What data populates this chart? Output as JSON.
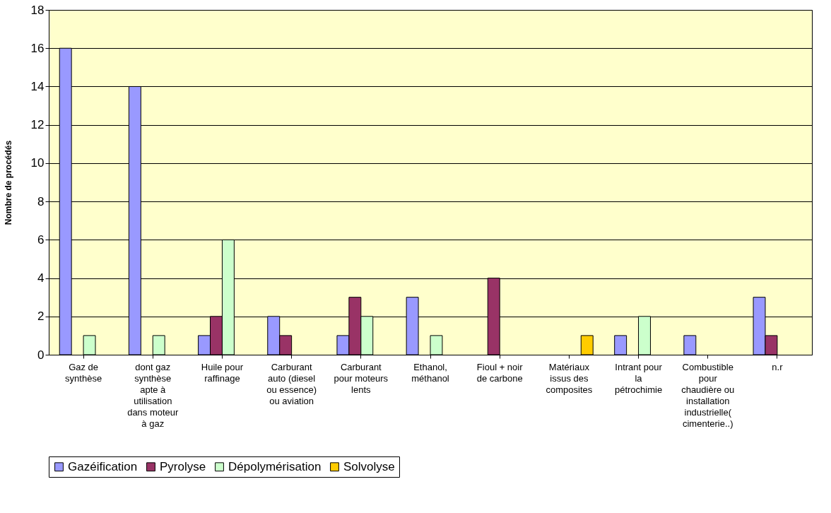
{
  "chart_data": {
    "type": "bar",
    "ylabel": "Nombre de procédés",
    "categories": [
      "Gaz de synthèse",
      "dont gaz synthèse apte à utilisation dans moteur à gaz",
      "Huile pour raffinage",
      "Carburant auto (diesel ou essence) ou aviation",
      "Carburant pour moteurs lents",
      "Ethanol, méthanol",
      "Fioul + noir de carbone",
      "Matériaux issus des composites",
      "Intrant pour la pétrochimie",
      "Combustible pour chaudière ou installation industrielle( cimenterie..)",
      "n.r"
    ],
    "series": [
      {
        "name": "Gazéification",
        "color": "#9999ff",
        "values": [
          16,
          14,
          1,
          2,
          1,
          3,
          null,
          null,
          1,
          1,
          3
        ]
      },
      {
        "name": "Pyrolyse",
        "color": "#993366",
        "values": [
          null,
          null,
          2,
          1,
          3,
          null,
          4,
          null,
          null,
          null,
          1
        ]
      },
      {
        "name": "Dépolymérisation",
        "color": "#ccffcc",
        "values": [
          1,
          1,
          6,
          null,
          2,
          1,
          null,
          null,
          2,
          null,
          null
        ]
      },
      {
        "name": "Solvolyse",
        "color": "#ffcc00",
        "values": [
          null,
          null,
          null,
          null,
          null,
          null,
          null,
          1,
          null,
          null,
          null
        ]
      }
    ],
    "ylim": [
      0,
      18
    ],
    "yticks": [
      0,
      2,
      4,
      6,
      8,
      10,
      12,
      14,
      16,
      18
    ],
    "grid": "y",
    "legend": "bottom"
  }
}
